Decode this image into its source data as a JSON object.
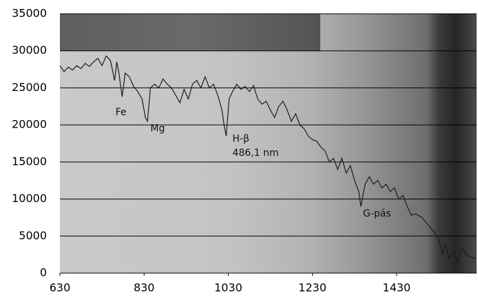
{
  "chart_data": {
    "type": "line",
    "x": [
      630,
      640,
      650,
      660,
      670,
      680,
      690,
      700,
      710,
      720,
      730,
      740,
      750,
      760,
      765,
      770,
      778,
      785,
      795,
      805,
      815,
      825,
      833,
      838,
      845,
      855,
      865,
      875,
      885,
      895,
      905,
      915,
      925,
      935,
      945,
      955,
      965,
      975,
      985,
      995,
      1005,
      1015,
      1020,
      1025,
      1032,
      1040,
      1050,
      1060,
      1070,
      1080,
      1090,
      1100,
      1110,
      1120,
      1130,
      1140,
      1150,
      1160,
      1170,
      1180,
      1190,
      1200,
      1210,
      1220,
      1230,
      1240,
      1250,
      1260,
      1270,
      1280,
      1290,
      1300,
      1310,
      1320,
      1330,
      1340,
      1345,
      1355,
      1365,
      1375,
      1385,
      1395,
      1405,
      1415,
      1425,
      1435,
      1445,
      1455,
      1465,
      1475,
      1490,
      1505,
      1520,
      1530,
      1540,
      1545,
      1555,
      1565,
      1575,
      1585,
      1595,
      1605,
      1618
    ],
    "series": [
      {
        "color": "#1a1a1a",
        "values": [
          28000,
          27200,
          27800,
          27400,
          28000,
          27600,
          28300,
          27900,
          28500,
          29000,
          28000,
          29300,
          28700,
          26000,
          28500,
          27000,
          23800,
          27000,
          26500,
          25200,
          24500,
          23500,
          21000,
          20500,
          25000,
          25500,
          25000,
          26200,
          25500,
          25000,
          24000,
          23000,
          24800,
          23500,
          25500,
          26000,
          25000,
          26500,
          25000,
          25500,
          24000,
          22000,
          20000,
          18500,
          23500,
          24500,
          25500,
          24800,
          25200,
          24500,
          25300,
          23500,
          22800,
          23200,
          22000,
          21000,
          22500,
          23200,
          22000,
          20500,
          21500,
          20000,
          19500,
          18500,
          18000,
          17800,
          17000,
          16500,
          15000,
          15500,
          14000,
          15500,
          13500,
          14500,
          12500,
          11000,
          9000,
          12000,
          13000,
          12000,
          12500,
          11500,
          12000,
          11000,
          11500,
          10000,
          10500,
          9000,
          7800,
          8000,
          7500,
          6500,
          5500,
          4500,
          2500,
          4000,
          2000,
          3000,
          1500,
          3500,
          2500,
          2200,
          2000
        ]
      }
    ],
    "xlim": [
      630,
      1620
    ],
    "xticks": [
      630,
      830,
      1030,
      1230,
      1430
    ],
    "ylim": [
      0,
      35000
    ],
    "yticks": [
      0,
      5000,
      10000,
      15000,
      20000,
      25000,
      30000,
      35000
    ],
    "grid": true,
    "annotations": [
      {
        "text": "Fe",
        "x": 762,
        "y": 21700
      },
      {
        "text": "Mg",
        "x": 845,
        "y": 19500
      },
      {
        "text": "H-β",
        "x": 1040,
        "y": 18100
      },
      {
        "text": "486,1 nm",
        "x": 1040,
        "y": 16200
      },
      {
        "text": "G-pás",
        "x": 1350,
        "y": 8000
      }
    ]
  }
}
